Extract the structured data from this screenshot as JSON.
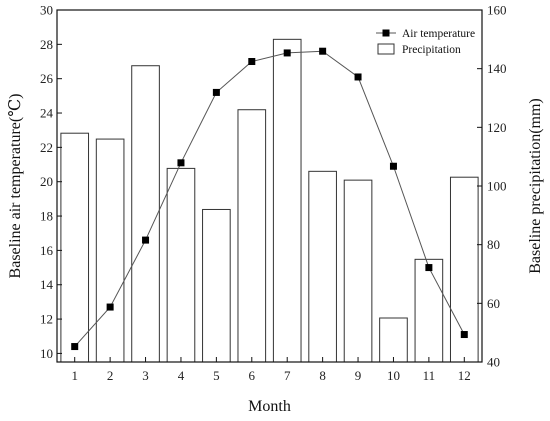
{
  "chart_data": {
    "type": "bar+line",
    "categories": [
      "1",
      "2",
      "3",
      "4",
      "5",
      "6",
      "7",
      "8",
      "9",
      "10",
      "11",
      "12"
    ],
    "series": [
      {
        "name": "Air temperature",
        "type": "line",
        "axis": "left",
        "marker": "square",
        "color": "#000000",
        "values": [
          10.4,
          12.7,
          16.6,
          21.1,
          25.2,
          27.0,
          27.5,
          27.6,
          26.1,
          20.9,
          15.0,
          11.1
        ]
      },
      {
        "name": "Precipitation",
        "type": "bar",
        "axis": "right",
        "color": "#ffffff",
        "edge_color": "#333333",
        "values": [
          118,
          116,
          141,
          106,
          92,
          126,
          150,
          105,
          102,
          55,
          75,
          103
        ]
      }
    ],
    "xlabel": "Month",
    "ylabel_left": "Baseline air temperature(℃)",
    "ylabel_right": "Baseline precipitation(mm)",
    "ylim_left": [
      9.5,
      30
    ],
    "ylim_right": [
      40,
      160
    ],
    "yticks_left": [
      "10",
      "12",
      "14",
      "16",
      "18",
      "20",
      "22",
      "24",
      "26",
      "28",
      "30"
    ],
    "yticks_right": [
      "40",
      "60",
      "80",
      "100",
      "120",
      "140",
      "160"
    ],
    "legend_position": "top-right",
    "grid": false
  }
}
